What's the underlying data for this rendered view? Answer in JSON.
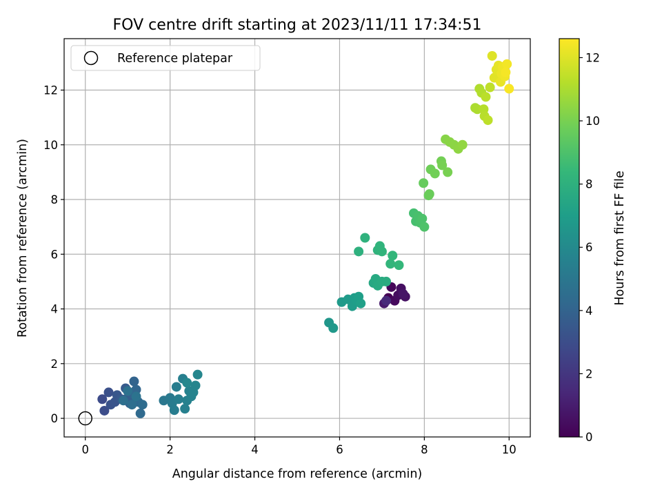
{
  "chart_data": {
    "type": "scatter",
    "title": "FOV centre drift starting at 2023/11/11 17:34:51",
    "xlabel": "Angular distance from reference (arcmin)",
    "ylabel": "Rotation from reference (arcmin)",
    "xlim": [
      -0.5,
      10.5
    ],
    "ylim": [
      -0.68,
      13.88
    ],
    "xticks": [
      0,
      2,
      4,
      6,
      8,
      10
    ],
    "yticks": [
      0,
      2,
      4,
      6,
      8,
      10,
      12
    ],
    "grid": true,
    "legend": {
      "placement": "top-left",
      "entries": [
        {
          "label": "Reference platepar",
          "marker": "open-circle"
        }
      ]
    },
    "reference_point": {
      "x": 0,
      "y": 0
    },
    "colorbar": {
      "label": "Hours from first FF file",
      "colormap": "viridis",
      "range": [
        0,
        12.6
      ],
      "ticks": [
        0,
        2,
        4,
        6,
        8,
        10,
        12
      ]
    },
    "colormap_stops": [
      "#440154",
      "#482878",
      "#3e4989",
      "#31688e",
      "#26828e",
      "#1f9e89",
      "#35b779",
      "#6ece58",
      "#b5de2b",
      "#fde725"
    ],
    "points": [
      {
        "x": 7.15,
        "y": 4.4,
        "h": 0.0
      },
      {
        "x": 7.22,
        "y": 4.8,
        "h": 0.2
      },
      {
        "x": 7.3,
        "y": 4.3,
        "h": 0.3
      },
      {
        "x": 7.38,
        "y": 4.5,
        "h": 0.4
      },
      {
        "x": 7.45,
        "y": 4.75,
        "h": 0.5
      },
      {
        "x": 7.55,
        "y": 4.45,
        "h": 0.6
      },
      {
        "x": 7.5,
        "y": 4.55,
        "h": 0.7
      },
      {
        "x": 7.05,
        "y": 4.2,
        "h": 0.9
      },
      {
        "x": 7.1,
        "y": 4.3,
        "h": 1.5
      },
      {
        "x": 0.4,
        "y": 0.7,
        "h": 2.9
      },
      {
        "x": 0.45,
        "y": 0.28,
        "h": 3.0
      },
      {
        "x": 0.55,
        "y": 0.95,
        "h": 3.1
      },
      {
        "x": 0.6,
        "y": 0.5,
        "h": 3.2
      },
      {
        "x": 0.7,
        "y": 0.6,
        "h": 3.3
      },
      {
        "x": 0.75,
        "y": 0.85,
        "h": 3.4
      },
      {
        "x": 0.85,
        "y": 0.7,
        "h": 3.5
      },
      {
        "x": 0.95,
        "y": 1.1,
        "h": 3.6
      },
      {
        "x": 1.0,
        "y": 0.75,
        "h": 3.7
      },
      {
        "x": 1.05,
        "y": 0.55,
        "h": 3.8
      },
      {
        "x": 1.1,
        "y": 0.9,
        "h": 3.9
      },
      {
        "x": 1.15,
        "y": 1.35,
        "h": 4.0
      },
      {
        "x": 1.2,
        "y": 1.05,
        "h": 4.1
      },
      {
        "x": 1.25,
        "y": 0.6,
        "h": 4.2
      },
      {
        "x": 1.3,
        "y": 0.18,
        "h": 4.3
      },
      {
        "x": 1.35,
        "y": 0.5,
        "h": 4.4
      },
      {
        "x": 1.1,
        "y": 0.5,
        "h": 4.5
      },
      {
        "x": 0.9,
        "y": 0.65,
        "h": 4.6
      },
      {
        "x": 1.0,
        "y": 1.0,
        "h": 4.7
      },
      {
        "x": 1.2,
        "y": 0.8,
        "h": 4.8
      },
      {
        "x": 1.85,
        "y": 0.65,
        "h": 5.0
      },
      {
        "x": 2.0,
        "y": 0.75,
        "h": 5.1
      },
      {
        "x": 2.05,
        "y": 0.55,
        "h": 5.2
      },
      {
        "x": 2.1,
        "y": 0.3,
        "h": 5.3
      },
      {
        "x": 2.15,
        "y": 1.15,
        "h": 5.35
      },
      {
        "x": 2.2,
        "y": 0.7,
        "h": 5.4
      },
      {
        "x": 2.3,
        "y": 1.45,
        "h": 5.45
      },
      {
        "x": 2.35,
        "y": 0.35,
        "h": 5.5
      },
      {
        "x": 2.4,
        "y": 0.65,
        "h": 5.55
      },
      {
        "x": 2.45,
        "y": 1.0,
        "h": 5.6
      },
      {
        "x": 2.5,
        "y": 0.8,
        "h": 5.65
      },
      {
        "x": 2.55,
        "y": 0.95,
        "h": 5.7
      },
      {
        "x": 2.6,
        "y": 1.2,
        "h": 5.75
      },
      {
        "x": 2.65,
        "y": 1.6,
        "h": 5.8
      },
      {
        "x": 2.4,
        "y": 1.3,
        "h": 5.85
      },
      {
        "x": 5.75,
        "y": 3.5,
        "h": 6.6
      },
      {
        "x": 5.85,
        "y": 3.3,
        "h": 6.7
      },
      {
        "x": 6.05,
        "y": 4.25,
        "h": 6.8
      },
      {
        "x": 6.2,
        "y": 4.35,
        "h": 6.85
      },
      {
        "x": 6.3,
        "y": 4.1,
        "h": 6.9
      },
      {
        "x": 6.35,
        "y": 4.4,
        "h": 6.95
      },
      {
        "x": 6.4,
        "y": 4.3,
        "h": 7.0
      },
      {
        "x": 6.45,
        "y": 4.45,
        "h": 7.05
      },
      {
        "x": 6.5,
        "y": 4.2,
        "h": 7.1
      },
      {
        "x": 6.8,
        "y": 4.95,
        "h": 7.5
      },
      {
        "x": 6.85,
        "y": 5.1,
        "h": 7.6
      },
      {
        "x": 6.9,
        "y": 4.85,
        "h": 7.65
      },
      {
        "x": 7.0,
        "y": 5.0,
        "h": 7.7
      },
      {
        "x": 7.1,
        "y": 5.0,
        "h": 7.75
      },
      {
        "x": 6.45,
        "y": 6.1,
        "h": 8.0
      },
      {
        "x": 6.6,
        "y": 6.6,
        "h": 8.05
      },
      {
        "x": 6.9,
        "y": 6.15,
        "h": 8.1
      },
      {
        "x": 6.95,
        "y": 6.3,
        "h": 8.15
      },
      {
        "x": 7.0,
        "y": 6.1,
        "h": 8.2
      },
      {
        "x": 7.2,
        "y": 5.65,
        "h": 8.25
      },
      {
        "x": 7.25,
        "y": 5.95,
        "h": 8.3
      },
      {
        "x": 7.4,
        "y": 5.6,
        "h": 8.35
      },
      {
        "x": 7.75,
        "y": 7.5,
        "h": 8.8
      },
      {
        "x": 7.8,
        "y": 7.2,
        "h": 8.85
      },
      {
        "x": 7.85,
        "y": 7.4,
        "h": 8.9
      },
      {
        "x": 7.9,
        "y": 7.15,
        "h": 8.95
      },
      {
        "x": 7.95,
        "y": 7.3,
        "h": 9.0
      },
      {
        "x": 8.0,
        "y": 7.0,
        "h": 9.05
      },
      {
        "x": 7.98,
        "y": 8.6,
        "h": 9.6
      },
      {
        "x": 8.1,
        "y": 8.15,
        "h": 9.65
      },
      {
        "x": 8.12,
        "y": 8.2,
        "h": 9.7
      },
      {
        "x": 8.15,
        "y": 9.1,
        "h": 9.8
      },
      {
        "x": 8.25,
        "y": 8.95,
        "h": 9.85
      },
      {
        "x": 8.4,
        "y": 9.4,
        "h": 9.9
      },
      {
        "x": 8.42,
        "y": 9.25,
        "h": 9.95
      },
      {
        "x": 8.55,
        "y": 9.0,
        "h": 10.0
      },
      {
        "x": 8.5,
        "y": 10.2,
        "h": 10.3
      },
      {
        "x": 8.6,
        "y": 10.1,
        "h": 10.35
      },
      {
        "x": 8.7,
        "y": 10.0,
        "h": 10.4
      },
      {
        "x": 8.8,
        "y": 9.85,
        "h": 10.45
      },
      {
        "x": 8.9,
        "y": 10.0,
        "h": 10.5
      },
      {
        "x": 9.2,
        "y": 11.35,
        "h": 11.0
      },
      {
        "x": 9.25,
        "y": 11.3,
        "h": 11.05
      },
      {
        "x": 9.3,
        "y": 12.05,
        "h": 11.1
      },
      {
        "x": 9.35,
        "y": 11.9,
        "h": 11.15
      },
      {
        "x": 9.4,
        "y": 11.3,
        "h": 11.2
      },
      {
        "x": 9.42,
        "y": 11.05,
        "h": 11.25
      },
      {
        "x": 9.45,
        "y": 11.75,
        "h": 11.3
      },
      {
        "x": 9.5,
        "y": 10.9,
        "h": 11.35
      },
      {
        "x": 9.55,
        "y": 12.1,
        "h": 11.4
      },
      {
        "x": 9.6,
        "y": 13.25,
        "h": 12.0
      },
      {
        "x": 9.65,
        "y": 12.45,
        "h": 12.05
      },
      {
        "x": 9.7,
        "y": 12.75,
        "h": 12.1
      },
      {
        "x": 9.75,
        "y": 12.9,
        "h": 12.15
      },
      {
        "x": 9.8,
        "y": 12.3,
        "h": 12.2
      },
      {
        "x": 9.82,
        "y": 12.6,
        "h": 12.25
      },
      {
        "x": 9.85,
        "y": 12.85,
        "h": 12.3
      },
      {
        "x": 9.9,
        "y": 12.5,
        "h": 12.35
      },
      {
        "x": 9.95,
        "y": 12.95,
        "h": 12.4
      },
      {
        "x": 9.92,
        "y": 12.65,
        "h": 12.45
      },
      {
        "x": 10.0,
        "y": 12.05,
        "h": 12.5
      }
    ]
  }
}
